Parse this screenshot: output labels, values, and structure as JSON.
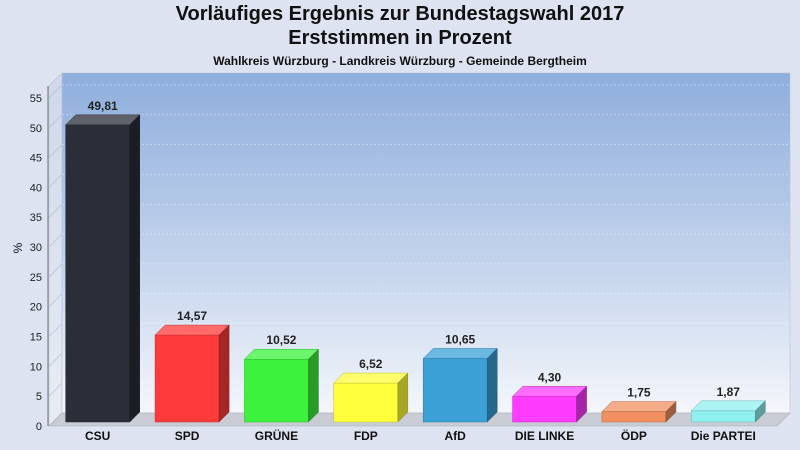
{
  "header": {
    "title": "Vorläufiges Ergebnis zur Bundestagswahl 2017",
    "subtitle": "Erststimmen in Prozent",
    "caption": "Wahlkreis Würzburg - Landkreis Würzburg - Gemeinde Bergtheim"
  },
  "chart_data": {
    "type": "bar",
    "title": "Vorläufiges Ergebnis zur Bundestagswahl 2017",
    "subtitle": "Erststimmen in Prozent",
    "ylabel": "%",
    "ylim": [
      0,
      57
    ],
    "yticks": [
      0,
      5,
      10,
      15,
      20,
      25,
      30,
      35,
      40,
      45,
      50,
      55
    ],
    "grid": true,
    "categories": [
      "CSU",
      "SPD",
      "GRÜNE",
      "FDP",
      "AfD",
      "DIE LINKE",
      "ÖDP",
      "Die PARTEI"
    ],
    "values": [
      49.81,
      14.57,
      10.52,
      6.52,
      10.65,
      4.3,
      1.75,
      1.87
    ],
    "value_labels": [
      "49,81",
      "14,57",
      "10,52",
      "6,52",
      "10,65",
      "4,30",
      "1,75",
      "1,87"
    ],
    "colors": [
      "#2a2e38",
      "#ff3a3a",
      "#3cf23c",
      "#ffff3c",
      "#3aa0d6",
      "#ff3cff",
      "#f09060",
      "#90f0f0"
    ]
  }
}
